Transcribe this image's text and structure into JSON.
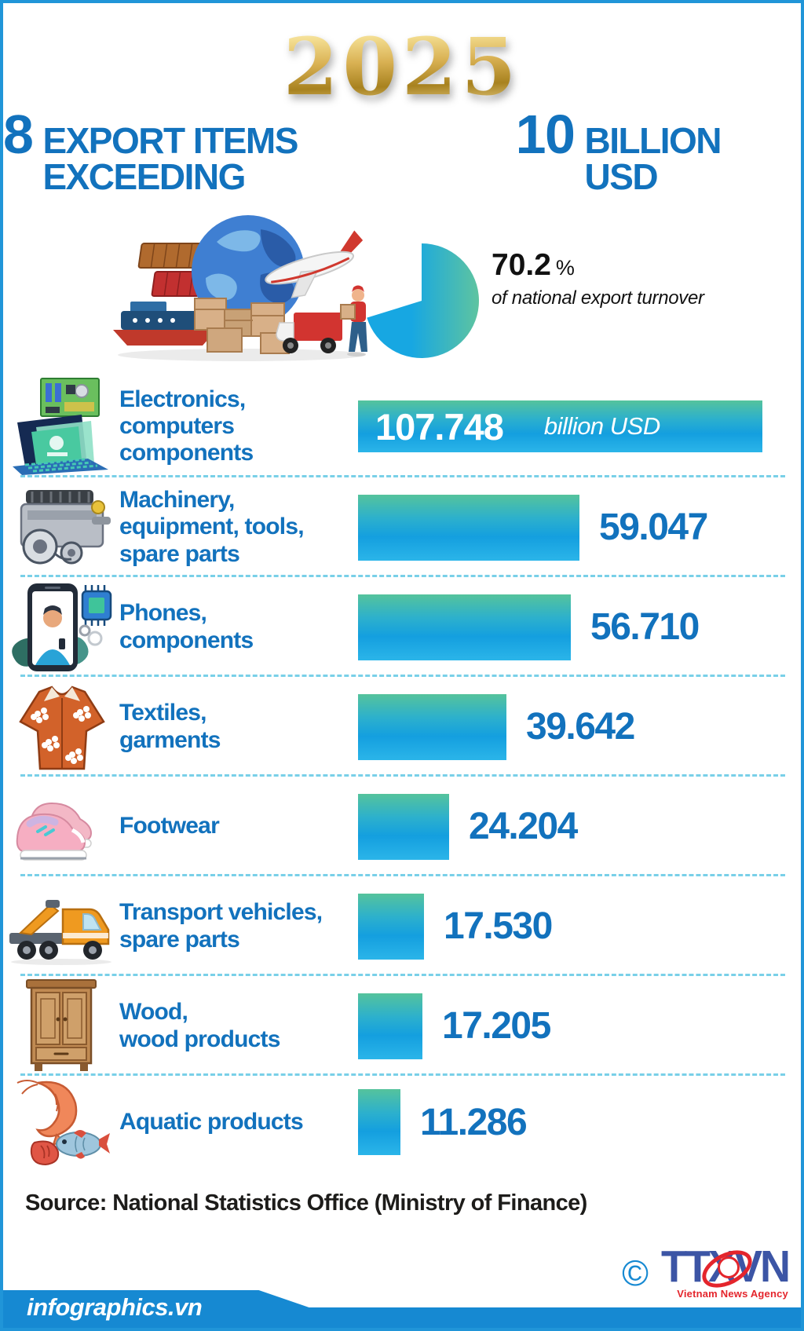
{
  "year_badge": "2025",
  "title": {
    "number_8": "8",
    "text_1": "EXPORT ITEMS EXCEEDING",
    "number_10": "10",
    "text_2": "BILLION USD"
  },
  "share": {
    "percent": 70.2,
    "value_text": "70.2",
    "unit": "%",
    "caption": "of national export turnover"
  },
  "rows": [
    {
      "label": "Electronics, computers\ncomponents",
      "value": 107.748,
      "value_text": "107.748",
      "unit_text": "billion USD",
      "icon": "laptop-circuit-board"
    },
    {
      "label": "Machinery,\nequipment, tools,\nspare parts",
      "value": 59.047,
      "value_text": "59.047",
      "icon": "engine"
    },
    {
      "label": "Phones,\ncomponents",
      "value": 56.71,
      "value_text": "56.710",
      "icon": "smartphone-chip"
    },
    {
      "label": "Textiles,\ngarments",
      "value": 39.642,
      "value_text": "39.642",
      "icon": "shirt"
    },
    {
      "label": "Footwear",
      "value": 24.204,
      "value_text": "24.204",
      "icon": "sneakers"
    },
    {
      "label": "Transport vehicles,\nspare parts",
      "value": 17.53,
      "value_text": "17.530",
      "icon": "truck"
    },
    {
      "label": "Wood,\nwood products",
      "value": 17.205,
      "value_text": "17.205",
      "icon": "wardrobe"
    },
    {
      "label": "Aquatic products",
      "value": 11.286,
      "value_text": "11.286",
      "icon": "shrimp-fish"
    }
  ],
  "chart_data": {
    "type": "bar",
    "orientation": "horizontal",
    "title": "8 EXPORT ITEMS EXCEEDING 10 BILLION USD",
    "year": "2025",
    "unit": "billion USD",
    "categories": [
      "Electronics, computers components",
      "Machinery, equipment, tools, spare parts",
      "Phones, components",
      "Textiles, garments",
      "Footwear",
      "Transport vehicles, spare parts",
      "Wood, wood products",
      "Aquatic products"
    ],
    "values": [
      107.748,
      59.047,
      56.71,
      39.642,
      24.204,
      17.53,
      17.205,
      11.286
    ],
    "max_value": 107.748,
    "share_of_national_export_turnover_percent": 70.2,
    "legend": "none",
    "grid": "off"
  },
  "source_line": "Source: National Statistics Office (Ministry of Finance)",
  "footer": {
    "site": "infographics.vn",
    "copyright_symbol": "©",
    "agency_abbr": "TTXVN",
    "agency_name": "Vietnam News Agency"
  },
  "colors": {
    "accent_blue": "#1272bd",
    "bar_teal_top": "#55c39c",
    "bar_blue": "#149fdf",
    "frame_blue": "#2095d8",
    "footer_blue": "#1689d2",
    "dashed_line": "#79d0e8",
    "gold": "#d9b153",
    "agency_blue": "#3c55a5",
    "agency_red": "#e4252c"
  }
}
